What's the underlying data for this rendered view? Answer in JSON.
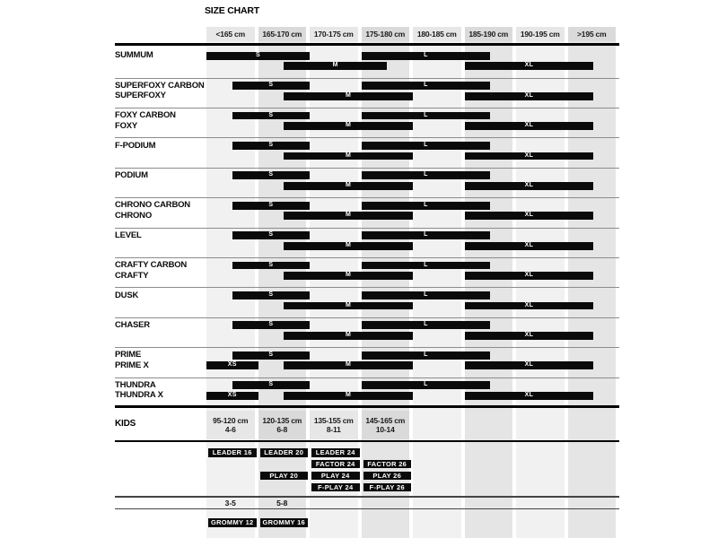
{
  "chart_data": {
    "type": "table",
    "title": "SIZE CHART",
    "kids_label": "KIDS",
    "height_columns": [
      "<165 cm",
      "165-170 cm",
      "170-175 cm",
      "175-180 cm",
      "180-185 cm",
      "185-190 cm",
      "190-195 cm",
      ">195 cm"
    ],
    "size_unit": "cm rider height, bars span height ranges in column units 0-8",
    "adult_rows": [
      {
        "label": [
          "SUMMUM"
        ],
        "bars": [
          {
            "size": "S",
            "from": 0,
            "to": 2,
            "line": 1
          },
          {
            "size": "M",
            "from": 1.5,
            "to": 3.5,
            "line": 2
          },
          {
            "size": "L",
            "from": 3,
            "to": 5.5,
            "line": 1
          },
          {
            "size": "XL",
            "from": 5,
            "to": 7.5,
            "line": 2
          }
        ]
      },
      {
        "label": [
          "SUPERFOXY CARBON",
          "SUPERFOXY"
        ],
        "bars": [
          {
            "size": "S",
            "from": 0.5,
            "to": 2,
            "line": 1
          },
          {
            "size": "M",
            "from": 1.5,
            "to": 4,
            "line": 2
          },
          {
            "size": "L",
            "from": 3,
            "to": 5.5,
            "line": 1
          },
          {
            "size": "XL",
            "from": 5,
            "to": 7.5,
            "line": 2
          }
        ]
      },
      {
        "label": [
          "FOXY CARBON",
          "FOXY"
        ],
        "bars": [
          {
            "size": "S",
            "from": 0.5,
            "to": 2,
            "line": 1
          },
          {
            "size": "M",
            "from": 1.5,
            "to": 4,
            "line": 2
          },
          {
            "size": "L",
            "from": 3,
            "to": 5.5,
            "line": 1
          },
          {
            "size": "XL",
            "from": 5,
            "to": 7.5,
            "line": 2
          }
        ]
      },
      {
        "label": [
          "F-PODIUM"
        ],
        "bars": [
          {
            "size": "S",
            "from": 0.5,
            "to": 2,
            "line": 1
          },
          {
            "size": "M",
            "from": 1.5,
            "to": 4,
            "line": 2
          },
          {
            "size": "L",
            "from": 3,
            "to": 5.5,
            "line": 1
          },
          {
            "size": "XL",
            "from": 5,
            "to": 7.5,
            "line": 2
          }
        ]
      },
      {
        "label": [
          "PODIUM"
        ],
        "bars": [
          {
            "size": "S",
            "from": 0.5,
            "to": 2,
            "line": 1
          },
          {
            "size": "M",
            "from": 1.5,
            "to": 4,
            "line": 2
          },
          {
            "size": "L",
            "from": 3,
            "to": 5.5,
            "line": 1
          },
          {
            "size": "XL",
            "from": 5,
            "to": 7.5,
            "line": 2
          }
        ]
      },
      {
        "label": [
          "CHRONO CARBON",
          "CHRONO"
        ],
        "bars": [
          {
            "size": "S",
            "from": 0.5,
            "to": 2,
            "line": 1
          },
          {
            "size": "M",
            "from": 1.5,
            "to": 4,
            "line": 2
          },
          {
            "size": "L",
            "from": 3,
            "to": 5.5,
            "line": 1
          },
          {
            "size": "XL",
            "from": 5,
            "to": 7.5,
            "line": 2
          }
        ]
      },
      {
        "label": [
          "LEVEL"
        ],
        "bars": [
          {
            "size": "S",
            "from": 0.5,
            "to": 2,
            "line": 1
          },
          {
            "size": "M",
            "from": 1.5,
            "to": 4,
            "line": 2
          },
          {
            "size": "L",
            "from": 3,
            "to": 5.5,
            "line": 1
          },
          {
            "size": "XL",
            "from": 5,
            "to": 7.5,
            "line": 2
          }
        ]
      },
      {
        "label": [
          "CRAFTY CARBON",
          "CRAFTY"
        ],
        "bars": [
          {
            "size": "S",
            "from": 0.5,
            "to": 2,
            "line": 1
          },
          {
            "size": "M",
            "from": 1.5,
            "to": 4,
            "line": 2
          },
          {
            "size": "L",
            "from": 3,
            "to": 5.5,
            "line": 1
          },
          {
            "size": "XL",
            "from": 5,
            "to": 7.5,
            "line": 2
          }
        ]
      },
      {
        "label": [
          "DUSK"
        ],
        "bars": [
          {
            "size": "S",
            "from": 0.5,
            "to": 2,
            "line": 1
          },
          {
            "size": "M",
            "from": 1.5,
            "to": 4,
            "line": 2
          },
          {
            "size": "L",
            "from": 3,
            "to": 5.5,
            "line": 1
          },
          {
            "size": "XL",
            "from": 5,
            "to": 7.5,
            "line": 2
          }
        ]
      },
      {
        "label": [
          "CHASER"
        ],
        "bars": [
          {
            "size": "S",
            "from": 0.5,
            "to": 2,
            "line": 1
          },
          {
            "size": "M",
            "from": 1.5,
            "to": 4,
            "line": 2
          },
          {
            "size": "L",
            "from": 3,
            "to": 5.5,
            "line": 1
          },
          {
            "size": "XL",
            "from": 5,
            "to": 7.5,
            "line": 2
          }
        ]
      },
      {
        "label": [
          "PRIME",
          "PRIME X"
        ],
        "bars": [
          {
            "size": "S",
            "from": 0.5,
            "to": 2,
            "line": 1
          },
          {
            "size": "XS",
            "from": 0,
            "to": 1,
            "line": 2
          },
          {
            "size": "M",
            "from": 1.5,
            "to": 4,
            "line": 2
          },
          {
            "size": "L",
            "from": 3,
            "to": 5.5,
            "line": 1
          },
          {
            "size": "XL",
            "from": 5,
            "to": 7.5,
            "line": 2
          }
        ]
      },
      {
        "label": [
          "THUNDRA",
          "THUNDRA X"
        ],
        "bars": [
          {
            "size": "S",
            "from": 0.5,
            "to": 2,
            "line": 1
          },
          {
            "size": "XS",
            "from": 0,
            "to": 1,
            "line": 2
          },
          {
            "size": "M",
            "from": 1.5,
            "to": 4,
            "line": 2
          },
          {
            "size": "L",
            "from": 3,
            "to": 5.5,
            "line": 1
          },
          {
            "size": "XL",
            "from": 5,
            "to": 7.5,
            "line": 2
          }
        ]
      }
    ],
    "kids_columns": [
      {
        "range": "95-120 cm",
        "age": "4-6"
      },
      {
        "range": "120-135 cm",
        "age": "6-8"
      },
      {
        "range": "135-155 cm",
        "age": "8-11"
      },
      {
        "range": "145-165 cm",
        "age": "10-14"
      }
    ],
    "kids_rows": [
      [
        {
          "name": "LEADER 16",
          "col": 0
        },
        {
          "name": "LEADER 20",
          "col": 1
        },
        {
          "name": "LEADER 24",
          "col": 2
        }
      ],
      [
        {
          "name": "FACTOR 24",
          "col": 2
        },
        {
          "name": "FACTOR 26",
          "col": 3
        }
      ],
      [
        {
          "name": "PLAY 20",
          "col": 1
        },
        {
          "name": "PLAY 24",
          "col": 2
        },
        {
          "name": "PLAY 26",
          "col": 3
        }
      ],
      [
        {
          "name": "F-PLAY 24",
          "col": 2
        },
        {
          "name": "F-PLAY 26",
          "col": 3
        }
      ]
    ],
    "kids_age_row": [
      {
        "label": "3-5",
        "col": 0
      },
      {
        "label": "5-8",
        "col": 1
      }
    ],
    "kids_bottom_row": [
      {
        "name": "GROMMY 12",
        "col": 0
      },
      {
        "name": "GROMMY 16",
        "col": 1
      }
    ]
  },
  "colors": {
    "bar": "#0a0a0a",
    "stripe_light": "#f1f1f1",
    "stripe_dark": "#e5e5e5",
    "header_light": "#e7e7e7",
    "header_dark": "#dadada",
    "rule_thin": "#8c8c8c",
    "rule_thick": "#000000"
  }
}
